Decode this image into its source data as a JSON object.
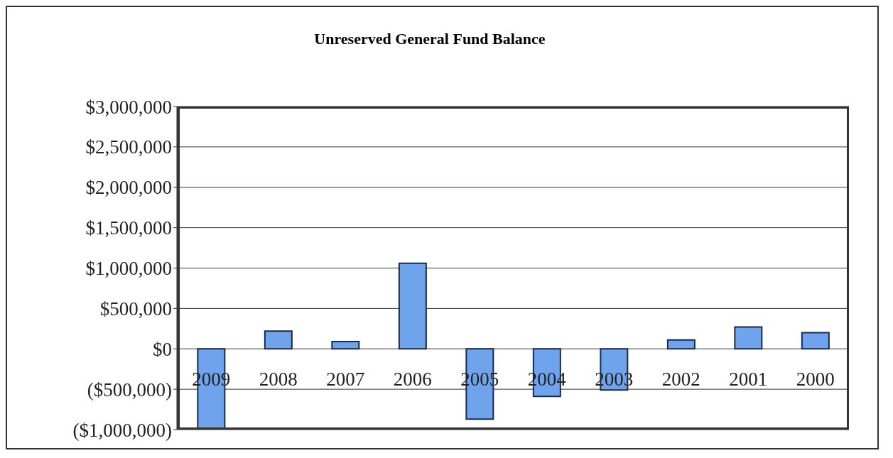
{
  "chart_data": {
    "type": "bar",
    "title": "Unreserved General Fund Balance",
    "categories": [
      "2009",
      "2008",
      "2007",
      "2006",
      "2005",
      "2004",
      "2003",
      "2002",
      "2001",
      "2000"
    ],
    "values": [
      -1000000,
      220000,
      90000,
      1060000,
      -870000,
      -590000,
      -510000,
      110000,
      270000,
      200000
    ],
    "color": "#6fa3ec",
    "ylim": [
      -1000000,
      3000000
    ],
    "yticks": [
      {
        "value": -1000000,
        "label": "($1,000,000)"
      },
      {
        "value": -500000,
        "label": "($500,000)"
      },
      {
        "value": 0,
        "label": "$0"
      },
      {
        "value": 500000,
        "label": "$500,000"
      },
      {
        "value": 1000000,
        "label": "$1,000,000"
      },
      {
        "value": 1500000,
        "label": "$1,500,000"
      },
      {
        "value": 2000000,
        "label": "$2,000,000"
      },
      {
        "value": 2500000,
        "label": "$2,500,000"
      },
      {
        "value": 3000000,
        "label": "$3,000,000"
      }
    ],
    "grid": "y",
    "legend": false
  }
}
